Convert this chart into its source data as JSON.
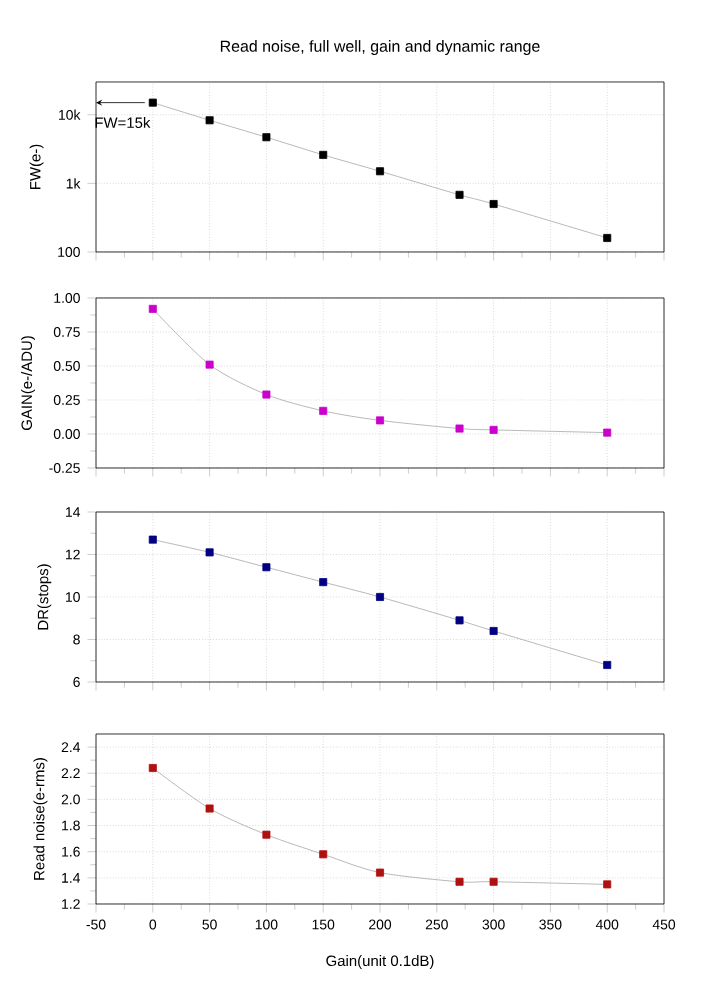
{
  "chart_data": [
    {
      "type": "line",
      "title": "Read noise, full well, gain and dynamic range",
      "ylabel": "FW(e-)",
      "x": [
        0,
        50,
        100,
        150,
        200,
        270,
        300,
        400
      ],
      "values": [
        15000,
        8300,
        4700,
        2600,
        1500,
        680,
        500,
        160
      ],
      "color": "#000000",
      "log": true,
      "xlim": [
        -50,
        450
      ],
      "xticks": [
        -50,
        0,
        50,
        100,
        150,
        200,
        250,
        300,
        350,
        400,
        450
      ],
      "ylim": [
        100,
        30000
      ],
      "yticks": [
        100,
        {
          "value": 1000,
          "label": "1k"
        },
        {
          "value": 10000,
          "label": "10k"
        }
      ],
      "tick_labels": "y",
      "grid": true,
      "marker": "square",
      "line_style": "solid",
      "annotations": [
        {
          "text": "FW=15k",
          "x": 0,
          "y": 15000
        }
      ]
    },
    {
      "type": "line",
      "ylabel": "GAIN(e-/ADU)",
      "x": [
        0,
        50,
        100,
        150,
        200,
        270,
        300,
        400
      ],
      "values": [
        0.92,
        0.51,
        0.29,
        0.17,
        0.1,
        0.04,
        0.03,
        0.01
      ],
      "color": "#cc00cc",
      "xlim": [
        -50,
        450
      ],
      "xticks": [
        -50,
        0,
        50,
        100,
        150,
        200,
        250,
        300,
        350,
        400,
        450
      ],
      "ylim": [
        -0.25,
        1.0
      ],
      "yticks": [
        {
          "value": -0.25,
          "label": "-0.25"
        },
        {
          "value": 0,
          "label": "0.00"
        },
        {
          "value": 0.25,
          "label": "0.25"
        },
        {
          "value": 0.5,
          "label": "0.50"
        },
        {
          "value": 0.75,
          "label": "0.75"
        },
        {
          "value": 1.0,
          "label": "1.00"
        }
      ],
      "tick_labels": "y",
      "grid": true,
      "marker": "square",
      "line_style": "solid"
    },
    {
      "type": "line",
      "ylabel": "DR(stops)",
      "x": [
        0,
        50,
        100,
        150,
        200,
        270,
        300,
        400
      ],
      "values": [
        12.7,
        12.1,
        11.4,
        10.7,
        10.0,
        8.9,
        8.4,
        6.8
      ],
      "color": "#000080",
      "xlim": [
        -50,
        450
      ],
      "xticks": [
        -50,
        0,
        50,
        100,
        150,
        200,
        250,
        300,
        350,
        400,
        450
      ],
      "ylim": [
        6,
        14
      ],
      "yticks": [
        6,
        8,
        10,
        12,
        14
      ],
      "tick_labels": "y",
      "grid": true,
      "marker": "square",
      "line_style": "solid"
    },
    {
      "type": "line",
      "xlabel": "Gain(unit 0.1dB)",
      "ylabel": "Read noise(e-rms)",
      "x": [
        0,
        50,
        100,
        150,
        200,
        270,
        300,
        400
      ],
      "values": [
        2.24,
        1.93,
        1.73,
        1.58,
        1.44,
        1.37,
        1.37,
        1.35
      ],
      "color": "#b01010",
      "xlim": [
        -50,
        450
      ],
      "xticks": [
        -50,
        0,
        50,
        100,
        150,
        200,
        250,
        300,
        350,
        400,
        450
      ],
      "ylim": [
        1.2,
        2.5
      ],
      "yticks": [
        1.2,
        {
          "value": 1.4,
          "label": "1.4"
        },
        {
          "value": 1.6,
          "label": "1.6"
        },
        {
          "value": 1.8,
          "label": "1.8"
        },
        {
          "value": 2.0,
          "label": "2.0"
        },
        {
          "value": 2.2,
          "label": "2.2"
        },
        {
          "value": 2.4,
          "label": "2.4"
        }
      ],
      "grid": true,
      "marker": "square",
      "line_style": "solid"
    }
  ]
}
